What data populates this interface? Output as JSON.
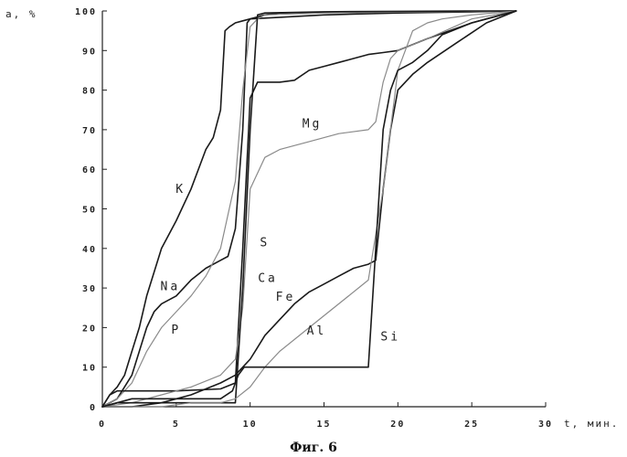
{
  "chart_data": {
    "type": "line",
    "xlabel": "t, мин.",
    "ylabel": "a, %",
    "caption": "Фиг. 6",
    "xlim": [
      0,
      30
    ],
    "ylim": [
      0,
      100
    ],
    "xticks": [
      "0",
      "5",
      "10",
      "15",
      "20",
      "25",
      "30"
    ],
    "yticks": [
      "0",
      "10",
      "20",
      "30",
      "40",
      "50",
      "60",
      "70",
      "80",
      "90",
      "100"
    ],
    "grid": false,
    "series": [
      {
        "name": "K",
        "color": "#1a1a1a",
        "width": 1.6,
        "x": [
          0,
          0.5,
          1,
          1.5,
          2,
          2.5,
          3,
          4,
          5,
          6,
          7,
          7.5,
          8,
          8.3,
          8.6,
          8.8,
          9,
          9.5,
          10,
          15,
          20,
          25,
          28
        ],
        "y": [
          0,
          3,
          5,
          8,
          14,
          20,
          28,
          40,
          47,
          55,
          65,
          68,
          75,
          95,
          96,
          96.5,
          97,
          97.5,
          98,
          99,
          99.5,
          99.8,
          100
        ]
      },
      {
        "name": "Na",
        "color": "#1a1a1a",
        "width": 1.6,
        "x": [
          0,
          1,
          2,
          3,
          3.5,
          4,
          5,
          6,
          7,
          8,
          8.5,
          9,
          9.5,
          9.8,
          10,
          10.5,
          11,
          12,
          15,
          20,
          25,
          28
        ],
        "y": [
          0,
          2,
          8,
          20,
          24,
          26,
          28,
          32,
          35,
          37,
          38,
          45,
          70,
          97,
          98,
          98.5,
          99,
          99.5,
          99.7,
          99.8,
          99.9,
          100
        ]
      },
      {
        "name": "P",
        "color": "#8a8a8a",
        "width": 1.2,
        "x": [
          0,
          1,
          2,
          3,
          4,
          5,
          6,
          7,
          8,
          9,
          9.5,
          10,
          10.5,
          11,
          15,
          20,
          25,
          28
        ],
        "y": [
          0,
          2,
          6,
          14,
          20,
          24,
          28,
          33,
          40,
          57,
          80,
          96,
          98,
          99,
          99.5,
          99.7,
          99.9,
          100
        ]
      },
      {
        "name": "Ca",
        "color": "#1a1a1a",
        "width": 1.6,
        "x": [
          0,
          0.5,
          1,
          2,
          5,
          8,
          9,
          9.5,
          10,
          10.5,
          11,
          12,
          13,
          14,
          15,
          16,
          17,
          18,
          19,
          20,
          22,
          25,
          28
        ],
        "y": [
          0,
          3,
          4,
          4,
          4,
          4.5,
          6,
          40,
          78,
          82,
          82,
          82,
          82.5,
          85,
          86,
          87,
          88,
          89,
          89.5,
          90,
          93,
          97,
          100
        ]
      },
      {
        "name": "Mg",
        "color": "#8a8a8a",
        "width": 1.2,
        "x": [
          0,
          2,
          4,
          6,
          8,
          9,
          9.5,
          10,
          11,
          12,
          14,
          16,
          18,
          18.5,
          19,
          19.5,
          20,
          22,
          25,
          28
        ],
        "y": [
          0,
          1,
          3,
          5,
          8,
          12,
          25,
          55,
          63,
          65,
          67,
          69,
          70,
          72,
          82,
          88,
          90,
          93,
          98,
          100
        ]
      },
      {
        "name": "S",
        "color": "#1a1a1a",
        "width": 1.6,
        "x": [
          0,
          1,
          3,
          5,
          7,
          8,
          9,
          9.5,
          10,
          10.5,
          11,
          15,
          20,
          25,
          28
        ],
        "y": [
          0,
          1,
          1,
          1,
          1,
          1,
          1,
          30,
          70,
          99,
          99.5,
          99.8,
          99.9,
          100,
          100
        ]
      },
      {
        "name": "Fe",
        "color": "#1a1a1a",
        "width": 1.6,
        "x": [
          0,
          2,
          4,
          6,
          8,
          9,
          9.5,
          10,
          10.5,
          11,
          12,
          13,
          14,
          15,
          16,
          17,
          18,
          18.5,
          19,
          19.5,
          20,
          21,
          22,
          24,
          26,
          28
        ],
        "y": [
          0,
          0,
          1,
          3,
          6,
          8,
          10,
          12,
          15,
          18,
          22,
          26,
          29,
          31,
          33,
          35,
          36,
          37,
          55,
          70,
          80,
          84,
          87,
          92,
          97,
          100
        ]
      },
      {
        "name": "Al",
        "color": "#8a8a8a",
        "width": 1.2,
        "x": [
          0,
          2,
          4,
          6,
          8,
          9,
          10,
          11,
          12,
          14,
          16,
          18,
          19,
          20,
          21,
          22,
          23,
          25,
          28
        ],
        "y": [
          0,
          0,
          0,
          1,
          1,
          2,
          5,
          10,
          14,
          20,
          26,
          32,
          55,
          85,
          95,
          97,
          98,
          99,
          100
        ]
      },
      {
        "name": "Si",
        "color": "#1a1a1a",
        "width": 1.6,
        "x": [
          0,
          1,
          2,
          4,
          6,
          8,
          8.8,
          9.2,
          9.6,
          10,
          12,
          15,
          17,
          18,
          18.5,
          19,
          19.5,
          20,
          21,
          22,
          23,
          25,
          26,
          28
        ],
        "y": [
          0,
          1,
          2,
          2,
          2,
          2,
          4,
          8,
          10,
          10,
          10,
          10,
          10,
          10,
          40,
          70,
          80,
          85,
          87,
          90,
          94,
          97,
          98,
          100
        ]
      }
    ],
    "labels": [
      {
        "text": "K",
        "x": 5.3,
        "y": 54
      },
      {
        "text": "Na",
        "x": 4.6,
        "y": 29.5
      },
      {
        "text": "P",
        "x": 5.0,
        "y": 18.5
      },
      {
        "text": "Ca",
        "x": 11.2,
        "y": 31.5
      },
      {
        "text": "Mg",
        "x": 14.2,
        "y": 70.5
      },
      {
        "text": "S",
        "x": 11.0,
        "y": 40.5
      },
      {
        "text": "Fe",
        "x": 12.4,
        "y": 26.8
      },
      {
        "text": "Al",
        "x": 14.5,
        "y": 18.2
      },
      {
        "text": "Si",
        "x": 19.5,
        "y": 16.8
      }
    ]
  }
}
